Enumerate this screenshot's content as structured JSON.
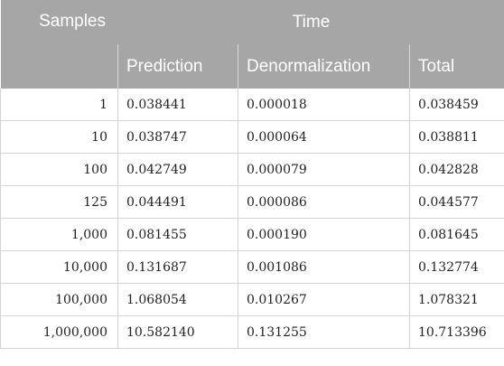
{
  "headers": {
    "samples": "Samples",
    "time": "Time",
    "prediction": "Prediction",
    "denormalization": "Denormalization",
    "total": "Total"
  },
  "rows": [
    {
      "samples": "1",
      "prediction": "0.038441",
      "denormalization": "0.000018",
      "total": "0.038459"
    },
    {
      "samples": "10",
      "prediction": "0.038747",
      "denormalization": "0.000064",
      "total": "0.038811"
    },
    {
      "samples": "100",
      "prediction": "0.042749",
      "denormalization": "0.000079",
      "total": "0.042828"
    },
    {
      "samples": "125",
      "prediction": "0.044491",
      "denormalization": "0.000086",
      "total": "0.044577"
    },
    {
      "samples": "1,000",
      "prediction": "0.081455",
      "denormalization": "0.000190",
      "total": "0.081645"
    },
    {
      "samples": "10,000",
      "prediction": "0.131687",
      "denormalization": "0.001086",
      "total": "0.132774"
    },
    {
      "samples": "100,000",
      "prediction": "1.068054",
      "denormalization": "0.010267",
      "total": "1.078321"
    },
    {
      "samples": "1,000,000",
      "prediction": "10.582140",
      "denormalization": "0.131255",
      "total": "10.713396"
    }
  ]
}
